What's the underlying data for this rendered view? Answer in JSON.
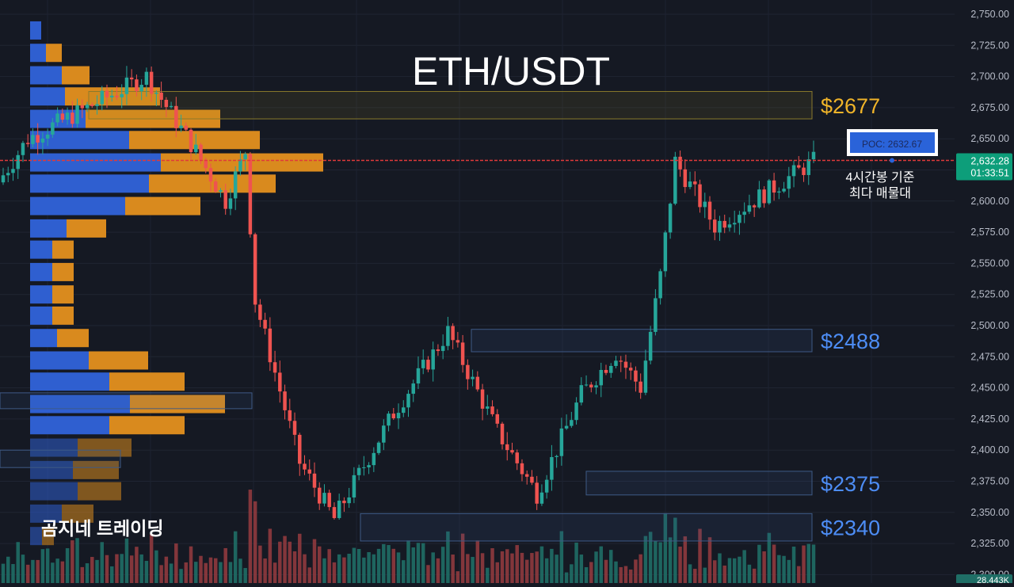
{
  "chart_data": {
    "type": "candlestick",
    "title": "ETH/USDT",
    "watermark": "곰지네 트레이딩",
    "colors": {
      "background": "#151923",
      "up": "#26a69a",
      "down": "#ef5350",
      "volume_up": "#1f6e66",
      "volume_down": "#8f3a3e",
      "profile_buy": "#2f5fd0",
      "profile_sell": "#d98a1e",
      "poc_line": "#e03a3a",
      "gold_label": "#f0b429",
      "blue_label": "#4d8df5",
      "price_badge": "#0d9e7a"
    },
    "y_axis": {
      "range": [
        2300,
        2755
      ],
      "ticks": [
        "2,750.00",
        "2,725.00",
        "2,700.00",
        "2,675.00",
        "2,650.00",
        "2,625.00",
        "2,600.00",
        "2,575.00",
        "2,550.00",
        "2,525.00",
        "2,500.00",
        "2,475.00",
        "2,450.00",
        "2,425.00",
        "2,400.00",
        "2,375.00",
        "2,350.00",
        "2,325.00",
        "2,300.00"
      ]
    },
    "current_price": {
      "value": "2,632.28",
      "countdown": "01:33:51"
    },
    "volume_readout": "28.443K",
    "poc": {
      "price": 2632.67,
      "label": "POC: 2632.67",
      "note_line1": "4시간봉 기준",
      "note_line2": "최다 매물대"
    },
    "levels": [
      {
        "label": "$2677",
        "low": 2666,
        "high": 2688,
        "color": "gold"
      },
      {
        "label": "$2488",
        "low": 2479,
        "high": 2497,
        "color": "blue"
      },
      {
        "label": "$2375",
        "low": 2364,
        "high": 2383,
        "color": "blue"
      },
      {
        "label": "$2340",
        "low": 2327,
        "high": 2349,
        "color": "blue"
      }
    ],
    "volume_profile": [
      {
        "price": 2737,
        "buy": 14,
        "sell": 0
      },
      {
        "price": 2719,
        "buy": 20,
        "sell": 20
      },
      {
        "price": 2701,
        "buy": 40,
        "sell": 35
      },
      {
        "price": 2684,
        "buy": 44,
        "sell": 120
      },
      {
        "price": 2666,
        "buy": 70,
        "sell": 170
      },
      {
        "price": 2649,
        "buy": 125,
        "sell": 165
      },
      {
        "price": 2631,
        "buy": 165,
        "sell": 205
      },
      {
        "price": 2614,
        "buy": 150,
        "sell": 160
      },
      {
        "price": 2596,
        "buy": 120,
        "sell": 95
      },
      {
        "price": 2578,
        "buy": 46,
        "sell": 50
      },
      {
        "price": 2561,
        "buy": 28,
        "sell": 27
      },
      {
        "price": 2543,
        "buy": 28,
        "sell": 27
      },
      {
        "price": 2525,
        "buy": 28,
        "sell": 27
      },
      {
        "price": 2508,
        "buy": 28,
        "sell": 27
      },
      {
        "price": 2490,
        "buy": 34,
        "sell": 40
      },
      {
        "price": 2472,
        "buy": 74,
        "sell": 75
      },
      {
        "price": 2455,
        "buy": 100,
        "sell": 95
      },
      {
        "price": 2437,
        "buy": 126,
        "sell": 120
      },
      {
        "price": 2420,
        "buy": 100,
        "sell": 95
      },
      {
        "price": 2402,
        "buy": 60,
        "sell": 68
      },
      {
        "price": 2384,
        "buy": 54,
        "sell": 58
      },
      {
        "price": 2367,
        "buy": 60,
        "sell": 55
      },
      {
        "price": 2349,
        "buy": 40,
        "sell": 40
      },
      {
        "price": 2331,
        "buy": 15,
        "sell": 15
      }
    ],
    "candle_segments": [
      {
        "from": 2615,
        "to": 2650,
        "n": 6
      },
      {
        "from": 2650,
        "to": 2700,
        "n": 24
      },
      {
        "from": 2700,
        "to": 2640,
        "n": 10
      },
      {
        "from": 2640,
        "to": 2600,
        "n": 6
      },
      {
        "from": 2600,
        "to": 2640,
        "n": 4
      },
      {
        "from": 2640,
        "to": 2520,
        "n": 2
      },
      {
        "from": 2520,
        "to": 2390,
        "n": 9
      },
      {
        "from": 2390,
        "to": 2345,
        "n": 7
      },
      {
        "from": 2345,
        "to": 2430,
        "n": 12
      },
      {
        "from": 2430,
        "to": 2495,
        "n": 11
      },
      {
        "from": 2495,
        "to": 2415,
        "n": 10
      },
      {
        "from": 2415,
        "to": 2365,
        "n": 8
      },
      {
        "from": 2365,
        "to": 2445,
        "n": 9
      },
      {
        "from": 2445,
        "to": 2478,
        "n": 7
      },
      {
        "from": 2478,
        "to": 2450,
        "n": 5
      },
      {
        "from": 2450,
        "to": 2540,
        "n": 4
      },
      {
        "from": 2540,
        "to": 2632,
        "n": 3
      },
      {
        "from": 2632,
        "to": 2580,
        "n": 8
      },
      {
        "from": 2580,
        "to": 2632,
        "n": 20
      }
    ]
  }
}
